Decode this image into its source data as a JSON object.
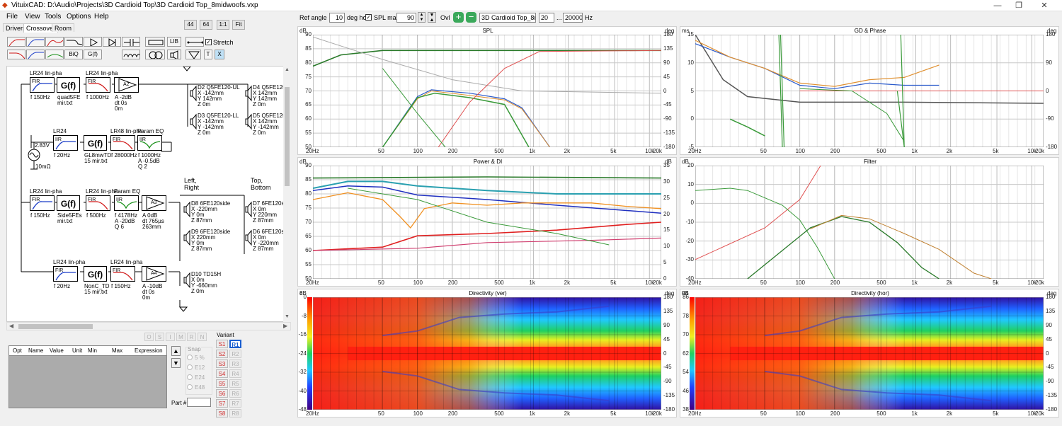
{
  "window": {
    "title": "VituixCAD: D:\\Audio\\Projects\\3D Cardioid Top\\3D Cardioid Top_8midwoofs.vxp",
    "controls": {
      "minimize": "—",
      "restore": "❐",
      "close": "✕"
    }
  },
  "menu": [
    "File",
    "View",
    "Tools",
    "Options",
    "Help"
  ],
  "tabs": [
    "Drivers",
    "Crossover",
    "Room"
  ],
  "active_tab": "Crossover",
  "scale_buttons": [
    "44",
    "64",
    "1:1",
    "Fit"
  ],
  "toolbar": {
    "biq": "BiQ",
    "gf": "G(f)",
    "lib": "LIB",
    "t": "T",
    "x": "X",
    "stretch": "Stretch"
  },
  "schematic": {
    "source": {
      "voltage": "2.83V",
      "impedance": "10mΩ"
    },
    "group_labels": {
      "left_right": "Left,\nRight",
      "top_bottom": "Top,\nBottom"
    },
    "blocks": [
      {
        "id": "b1",
        "title": "LR24 lin-pha",
        "inner": "FIR",
        "lines": [
          "f  150Hz"
        ],
        "kind": "hp"
      },
      {
        "id": "b2",
        "title": "",
        "inner": "G(f)",
        "lines": [
          "quad5FE",
          "mir.txt"
        ],
        "kind": "gf"
      },
      {
        "id": "b3",
        "title": "LR24 lin-pha",
        "inner": "FIR",
        "lines": [
          "f  1000Hz"
        ],
        "kind": "lp"
      },
      {
        "id": "b4",
        "title": "",
        "inner": "A2",
        "lines": [
          "A  -2dB",
          "dt 0s",
          "     0m"
        ],
        "kind": "amp"
      },
      {
        "id": "b5",
        "title": "LR24",
        "inner": "IIR",
        "lines": [
          "f  20Hz"
        ],
        "kind": "hp"
      },
      {
        "id": "b6",
        "title": "",
        "inner": "G(f)",
        "lines": [
          "GL8mwTD",
          "15 mir.txt"
        ],
        "kind": "gf"
      },
      {
        "id": "b7",
        "title": "LR48 lin-pha",
        "inner": "FIR",
        "lines": [
          "f  28000Hz"
        ],
        "kind": "lp"
      },
      {
        "id": "b8",
        "title": "Param EQ",
        "inner": "IIR",
        "lines": [
          "f  1000Hz",
          "A  -0.5dB",
          "Q  2"
        ],
        "kind": "eq"
      },
      {
        "id": "b9",
        "title": "LR24 lin-pha",
        "inner": "FIR",
        "lines": [
          "f  150Hz"
        ],
        "kind": "hp"
      },
      {
        "id": "b10",
        "title": "",
        "inner": "G(f)",
        "lines": [
          "Side5FEs",
          "mir.txt"
        ],
        "kind": "gf"
      },
      {
        "id": "b11",
        "title": "LR24 lin-pha",
        "inner": "FIR",
        "lines": [
          "f  500Hz"
        ],
        "kind": "lp"
      },
      {
        "id": "b12",
        "title": "Param EQ",
        "inner": "IIR",
        "lines": [
          "f  4178Hz",
          "A  -20dB",
          "Q  6"
        ],
        "kind": "eq"
      },
      {
        "id": "b13",
        "title": "",
        "inner": "A3",
        "lines": [
          "A  0dB",
          "dt 765µs",
          "     263mm"
        ],
        "kind": "amp"
      },
      {
        "id": "b14",
        "title": "LR24 lin-pha",
        "inner": "FIR",
        "lines": [
          "f  20Hz"
        ],
        "kind": "hp"
      },
      {
        "id": "b15",
        "title": "",
        "inner": "G(f)",
        "lines": [
          "NonC_TD",
          "15 mir.txt"
        ],
        "kind": "gf"
      },
      {
        "id": "b16",
        "title": "LR24 lin-pha",
        "inner": "FIR",
        "lines": [
          "f  150Hz"
        ],
        "kind": "lp"
      },
      {
        "id": "b17",
        "title": "",
        "inner": "A4",
        "lines": [
          "A  -10dB",
          "dt 0s",
          "     0m"
        ],
        "kind": "amp"
      }
    ],
    "drivers": [
      {
        "id": "d2",
        "lines": [
          "D2  Q5FE120-UL",
          "X  -142mm",
          "Y  142mm",
          "Z  0m"
        ]
      },
      {
        "id": "d4",
        "lines": [
          "D4  Q5FE120-U",
          "X  142mm",
          "Y  142mm",
          "Z  0m"
        ]
      },
      {
        "id": "d3",
        "lines": [
          "D3  Q5FE120-LL",
          "X  -142mm",
          "Y  -142mm",
          "Z  0m"
        ]
      },
      {
        "id": "d5",
        "lines": [
          "D5  Q5FE120-L",
          "X  142mm",
          "Y  -142mm",
          "Z  0m"
        ]
      },
      {
        "id": "d8",
        "lines": [
          "D8  6FE120side",
          "X  -220mm",
          "Y  0m",
          "Z  87mm"
        ]
      },
      {
        "id": "d7",
        "lines": [
          "D7  6FE120s",
          "X  0m",
          "Y  220mm",
          "Z  87mm"
        ]
      },
      {
        "id": "d9",
        "lines": [
          "D9  6FE120side",
          "X  220mm",
          "Y  0m",
          "Z  87mm"
        ]
      },
      {
        "id": "d6",
        "lines": [
          "D6  6FE120s",
          "X  0m",
          "Y  -220mm",
          "Z  87mm"
        ]
      },
      {
        "id": "d10",
        "lines": [
          "D10  TD15H",
          "X  0m",
          "Y  -660mm",
          "Z  0m"
        ]
      }
    ]
  },
  "opt_mode_buttons": [
    "O",
    "S",
    "I",
    "M",
    "R",
    "N"
  ],
  "opt_table_headers": [
    "Opt",
    "Name",
    "Value",
    "Unit",
    "Min",
    "Max",
    "Expression"
  ],
  "snap": {
    "label": "Snap",
    "options": [
      "5 %",
      "E12",
      "E24",
      "E48"
    ]
  },
  "part_label": "Part #",
  "variant": {
    "label": "Variant",
    "s": [
      "S1",
      "S2",
      "S3",
      "S4",
      "S5",
      "S6",
      "S7",
      "S8"
    ],
    "r": [
      "R1",
      "R2",
      "R3",
      "R4",
      "R5",
      "R6",
      "R7",
      "R8"
    ]
  },
  "topbar": {
    "ref_angle_label": "Ref angle",
    "ref_angle": "10",
    "deg_hor": "deg hor",
    "spl_max_label": "SPL max",
    "spl_max": "90",
    "ovl": "Ovl",
    "overlay_name": "3D Cardioid Top_8midw",
    "freq_from": "20",
    "dots": "...",
    "freq_to": "20000",
    "hz": "Hz"
  },
  "freq_ticks": [
    "20Hz",
    "50",
    "100",
    "200",
    "500",
    "1k",
    "2k",
    "5k",
    "10k",
    "20k"
  ],
  "charts": {
    "spl": {
      "title": "SPL",
      "left_unit": "dB",
      "right_unit": "deg",
      "left_ticks": [
        "90",
        "85",
        "80",
        "75",
        "70",
        "65",
        "60",
        "55",
        "50"
      ],
      "right_ticks": [
        "180",
        "135",
        "90",
        "45",
        "0",
        "-45",
        "-90",
        "-135",
        "-180"
      ]
    },
    "gd": {
      "title": "GD & Phase",
      "left_unit": "ms",
      "right_unit": "deg",
      "left_ticks": [
        "15",
        "10",
        "5",
        "0",
        "-5"
      ],
      "right_ticks": [
        "180",
        "90",
        "0",
        "-90",
        "-180"
      ]
    },
    "power": {
      "title": "Power & DI",
      "left_unit": "dB",
      "right_unit": "dB",
      "left_ticks": [
        "90",
        "85",
        "80",
        "75",
        "70",
        "65",
        "60",
        "55",
        "50"
      ],
      "right_ticks": [
        "35",
        "30",
        "25",
        "20",
        "15",
        "10",
        "5",
        "0"
      ]
    },
    "filter": {
      "title": "Filter",
      "left_unit": "dB",
      "right_unit": "",
      "left_ticks": [
        "20",
        "10",
        "0",
        "-10",
        "-20",
        "-30",
        "-40"
      ],
      "right_ticks": []
    },
    "dir_ver": {
      "title": "Directivity (ver)",
      "left_unit": "dB",
      "right_unit": "deg",
      "left_ticks": [
        "0",
        "-8",
        "-16",
        "-24",
        "-32",
        "-40",
        "-48"
      ],
      "right_ticks": [
        "180",
        "135",
        "90",
        "45",
        "0",
        "-45",
        "-90",
        "-135",
        "-180"
      ],
      "left_top": "8"
    },
    "dir_hor": {
      "title": "Directivity (hor)",
      "left_unit": "dB",
      "right_unit": "deg",
      "left_ticks": [
        "86",
        "78",
        "70",
        "62",
        "54",
        "46",
        "38"
      ],
      "right_ticks": [
        "180",
        "135",
        "90",
        "45",
        "0",
        "-45",
        "-90",
        "-135",
        "-180"
      ],
      "left_top": "94"
    }
  },
  "colors": {
    "hp_curve": "#1a3cc8",
    "lp_curve": "#d01818",
    "eq_curve": "#189018",
    "selected_variant": "#1a5fd0",
    "accent_red": "#d03030"
  }
}
